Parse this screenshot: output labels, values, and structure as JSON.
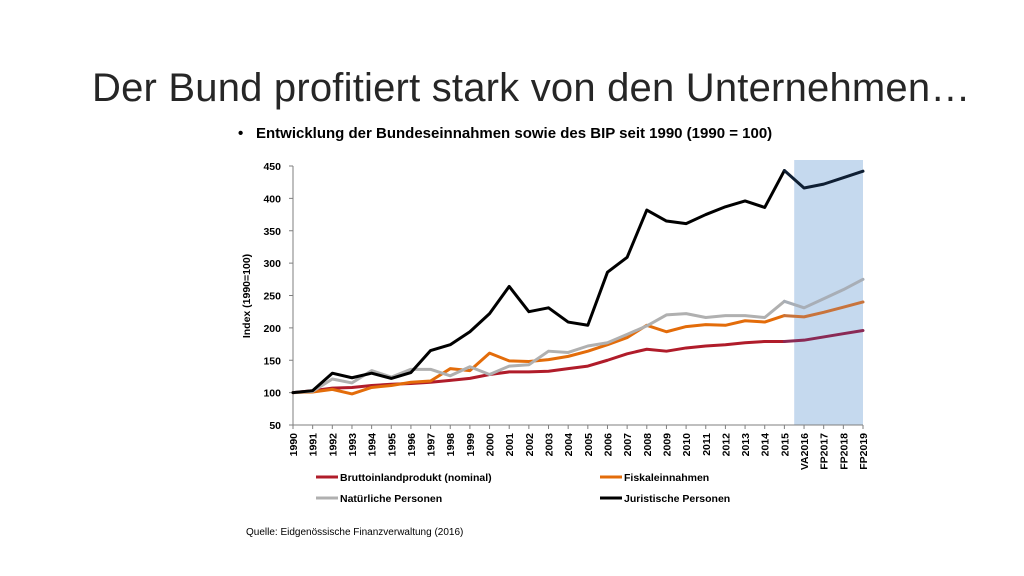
{
  "slide": {
    "title": "Der Bund profitiert stark von den Unternehmen…",
    "bullet": "•",
    "subtitle": "Entwicklung der Bundeseinnahmen sowie des BIP seit 1990 (1990 = 100)",
    "source": "Quelle: Eidgenössische Finanzverwaltung (2016)"
  },
  "chart_data": {
    "type": "line",
    "ylabel": "Index (1990=100)",
    "ylim": [
      50,
      450
    ],
    "yticks": [
      50,
      100,
      150,
      200,
      250,
      300,
      350,
      400,
      450
    ],
    "categories": [
      "1990",
      "1991",
      "1992",
      "1993",
      "1994",
      "1995",
      "1996",
      "1997",
      "1998",
      "1999",
      "2000",
      "2001",
      "2002",
      "2003",
      "2004",
      "2005",
      "2006",
      "2007",
      "2008",
      "2009",
      "2010",
      "2011",
      "2012",
      "2013",
      "2014",
      "2015",
      "VA2016",
      "FP2017",
      "FP2018",
      "FP2019"
    ],
    "forecast_start_index": 26,
    "forecast_shade_color": "#c5d9ee",
    "legend_position": "bottom",
    "series": [
      {
        "name": "Bruttoinlandprodukt (nominal)",
        "color": "#b01c2a",
        "forecast_color": "#8a2a55",
        "values": [
          100,
          103,
          107,
          108,
          111,
          113,
          114,
          116,
          119,
          122,
          128,
          132,
          132,
          133,
          137,
          141,
          150,
          160,
          167,
          164,
          169,
          172,
          174,
          177,
          179,
          179,
          181,
          186,
          191,
          196
        ]
      },
      {
        "name": "Fiskaleinnahmen",
        "color": "#e36c0a",
        "forecast_color": "#c8743c",
        "values": [
          100,
          101,
          105,
          98,
          108,
          111,
          116,
          118,
          137,
          134,
          161,
          149,
          148,
          151,
          156,
          164,
          174,
          185,
          204,
          194,
          202,
          205,
          204,
          211,
          209,
          219,
          217,
          224,
          232,
          240
        ]
      },
      {
        "name": "Natürliche Personen",
        "color": "#b0b0b0",
        "forecast_color": "#a8aeb6",
        "values": [
          100,
          102,
          121,
          115,
          134,
          124,
          136,
          136,
          126,
          140,
          128,
          141,
          143,
          164,
          162,
          172,
          177,
          190,
          203,
          220,
          222,
          216,
          219,
          219,
          216,
          241,
          231,
          245,
          259,
          275
        ]
      },
      {
        "name": "Juristische Personen",
        "color": "#000000",
        "forecast_color": "#0f1f33",
        "values": [
          100,
          103,
          130,
          123,
          130,
          122,
          131,
          165,
          174,
          194,
          222,
          264,
          225,
          231,
          209,
          204,
          286,
          309,
          382,
          365,
          361,
          375,
          387,
          396,
          386,
          443,
          416,
          422,
          432,
          442
        ]
      }
    ]
  }
}
